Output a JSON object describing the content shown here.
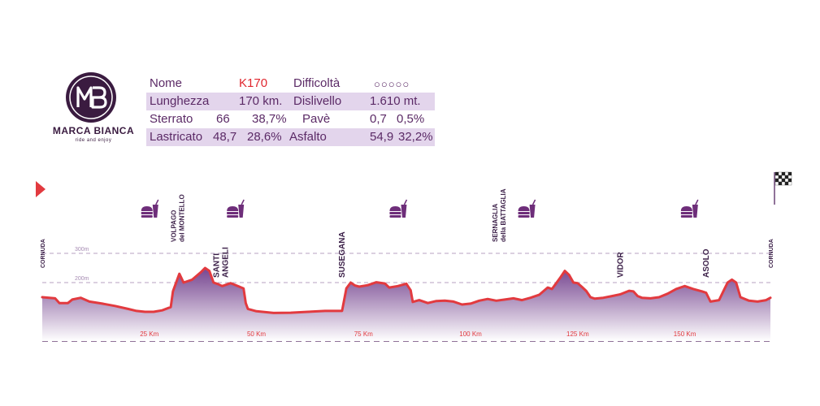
{
  "logo": {
    "brand": "MARCA BIANCA",
    "tagline": "ride and enjoy",
    "monogram": "MB"
  },
  "info": {
    "rows": [
      {
        "c1": "Nome",
        "c2": "K170",
        "c3": "Difficoltà",
        "c4": "○○○○○"
      },
      {
        "c1": "Lunghezza",
        "c2": "170 km.",
        "c3": "Dislivello",
        "c4": "1.610 mt."
      },
      {
        "c1": "Sterrato",
        "c2": "66",
        "c2b": "38,7%",
        "c3": "Pavè",
        "c4": "0,7",
        "c4b": "0,5%"
      },
      {
        "c1": "Lastricato",
        "c2": "48,7",
        "c2b": "28,6%",
        "c3": "Asfalto",
        "c4": "54,9",
        "c4b": "32,2%"
      }
    ]
  },
  "chart_data": {
    "type": "area",
    "x_unit": "km",
    "xlim": [
      0,
      170
    ],
    "ylim": [
      0,
      300
    ],
    "x_ticks": [
      {
        "value": 25,
        "label": "25 Km"
      },
      {
        "value": 50,
        "label": "50 Km"
      },
      {
        "value": 75,
        "label": "75 Km"
      },
      {
        "value": 100,
        "label": "100 Km"
      },
      {
        "value": 125,
        "label": "125 Km"
      },
      {
        "value": 150,
        "label": "150 Km"
      }
    ],
    "y_ticks": [
      {
        "value": 200,
        "label": "200m"
      },
      {
        "value": 300,
        "label": "300m"
      }
    ],
    "series": [
      {
        "points": [
          [
            0,
            150
          ],
          [
            3,
            146
          ],
          [
            4,
            130
          ],
          [
            6,
            130
          ],
          [
            7,
            142
          ],
          [
            9,
            148
          ],
          [
            11,
            135
          ],
          [
            14,
            128
          ],
          [
            17,
            120
          ],
          [
            20,
            110
          ],
          [
            22,
            103
          ],
          [
            24,
            100
          ],
          [
            26,
            100
          ],
          [
            28,
            105
          ],
          [
            30,
            116
          ],
          [
            30.5,
            170
          ],
          [
            32,
            230
          ],
          [
            33,
            200
          ],
          [
            35,
            210
          ],
          [
            37,
            235
          ],
          [
            38,
            250
          ],
          [
            39,
            240
          ],
          [
            40,
            200
          ],
          [
            41,
            195
          ],
          [
            42,
            188
          ],
          [
            44,
            198
          ],
          [
            45,
            192
          ],
          [
            46,
            186
          ],
          [
            47,
            180
          ],
          [
            47.5,
            130
          ],
          [
            48,
            110
          ],
          [
            50,
            102
          ],
          [
            54,
            96
          ],
          [
            58,
            97
          ],
          [
            62,
            100
          ],
          [
            66,
            103
          ],
          [
            70,
            103
          ],
          [
            71,
            180
          ],
          [
            72,
            200
          ],
          [
            73,
            190
          ],
          [
            74,
            186
          ],
          [
            76,
            191
          ],
          [
            78,
            201
          ],
          [
            80,
            197
          ],
          [
            81,
            183
          ],
          [
            83,
            188
          ],
          [
            85,
            196
          ],
          [
            86,
            174
          ],
          [
            86.5,
            134
          ],
          [
            88,
            140
          ],
          [
            90,
            130
          ],
          [
            92,
            137
          ],
          [
            94,
            138
          ],
          [
            96,
            135
          ],
          [
            98,
            125
          ],
          [
            100,
            128
          ],
          [
            102,
            138
          ],
          [
            104,
            144
          ],
          [
            106,
            138
          ],
          [
            108,
            142
          ],
          [
            110,
            146
          ],
          [
            112,
            140
          ],
          [
            114,
            148
          ],
          [
            116,
            158
          ],
          [
            118,
            183
          ],
          [
            119,
            178
          ],
          [
            120,
            198
          ],
          [
            121,
            218
          ],
          [
            122,
            240
          ],
          [
            123,
            226
          ],
          [
            124,
            200
          ],
          [
            125,
            198
          ],
          [
            126,
            185
          ],
          [
            127,
            171
          ],
          [
            128,
            150
          ],
          [
            129,
            145
          ],
          [
            131,
            148
          ],
          [
            133,
            154
          ],
          [
            135,
            160
          ],
          [
            137,
            172
          ],
          [
            138,
            170
          ],
          [
            139,
            154
          ],
          [
            140,
            148
          ],
          [
            142,
            146
          ],
          [
            144,
            150
          ],
          [
            146,
            162
          ],
          [
            148,
            178
          ],
          [
            150,
            188
          ],
          [
            152,
            178
          ],
          [
            154,
            170
          ],
          [
            155,
            165
          ],
          [
            156,
            135
          ],
          [
            158,
            140
          ],
          [
            159,
            170
          ],
          [
            160,
            200
          ],
          [
            161,
            210
          ],
          [
            162,
            200
          ],
          [
            163,
            150
          ],
          [
            165,
            138
          ],
          [
            167,
            135
          ],
          [
            169,
            140
          ],
          [
            170,
            148
          ]
        ]
      }
    ],
    "checkpoints": [
      {
        "km": 0,
        "label": "CORNUDA"
      },
      {
        "km": 32,
        "label": "VOLPAGO del MONTELLO"
      },
      {
        "km": 42,
        "label": "SANTI ANGELI"
      },
      {
        "km": 70,
        "label": "SUSEGANA"
      },
      {
        "km": 107,
        "label": "SERNAGLIA della BATTAGLIA"
      },
      {
        "km": 135,
        "label": "VIDOR"
      },
      {
        "km": 155,
        "label": "ASOLO"
      },
      {
        "km": 170,
        "label": "CORNUDA"
      }
    ],
    "food_stops": [
      25,
      45,
      83,
      113,
      151
    ],
    "colors": {
      "line": "#e23a3f",
      "fill_top": "#6f3c8a",
      "fill_bottom": "#ffffff",
      "text": "#3b1f48",
      "grid": "#a68bb3"
    }
  }
}
